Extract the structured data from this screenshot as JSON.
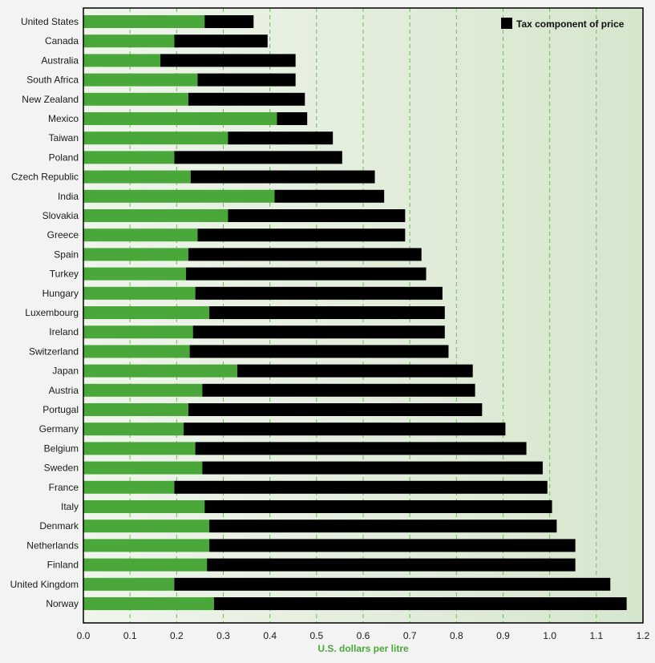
{
  "chart_data": {
    "type": "bar",
    "orientation": "horizontal",
    "stacked": true,
    "categories": [
      "United States",
      "Canada",
      "Australia",
      "South Africa",
      "New Zealand",
      "Mexico",
      "Taiwan",
      "Poland",
      "Czech Republic",
      "India",
      "Slovakia",
      "Greece",
      "Spain",
      "Turkey",
      "Hungary",
      "Luxembourg",
      "Ireland",
      "Switzerland",
      "Japan",
      "Austria",
      "Portugal",
      "Germany",
      "Belgium",
      "Sweden",
      "France",
      "Italy",
      "Denmark",
      "Netherlands",
      "Finland",
      "United Kingdom",
      "Norway"
    ],
    "series": [
      {
        "color": "#4aa83a",
        "values": [
          0.26,
          0.195,
          0.165,
          0.245,
          0.225,
          0.415,
          0.31,
          0.195,
          0.23,
          0.41,
          0.31,
          0.245,
          0.225,
          0.22,
          0.24,
          0.27,
          0.235,
          0.228,
          0.33,
          0.255,
          0.225,
          0.215,
          0.24,
          0.255,
          0.195,
          0.26,
          0.27,
          0.27,
          0.265,
          0.195,
          0.28
        ]
      },
      {
        "name": "Tax component of price",
        "color": "#000000",
        "values": [
          0.105,
          0.2,
          0.29,
          0.21,
          0.25,
          0.065,
          0.225,
          0.36,
          0.395,
          0.235,
          0.38,
          0.445,
          0.5,
          0.515,
          0.53,
          0.505,
          0.54,
          0.555,
          0.505,
          0.585,
          0.63,
          0.69,
          0.71,
          0.73,
          0.8,
          0.745,
          0.745,
          0.785,
          0.79,
          0.935,
          0.885
        ]
      }
    ],
    "xlabel": "U.S. dollars per litre",
    "xlim": [
      0,
      1.2
    ],
    "xticks": [
      "0.0",
      "0.1",
      "0.2",
      "0.3",
      "0.4",
      "0.5",
      "0.6",
      "0.7",
      "0.8",
      "0.9",
      "1.0",
      "1.1",
      "1.2"
    ],
    "grid": "vertical dashed",
    "legend_position": "top-right",
    "colors": {
      "background": "#dde9d6",
      "grid": "#6bbd5a",
      "frame": "#000000"
    }
  }
}
